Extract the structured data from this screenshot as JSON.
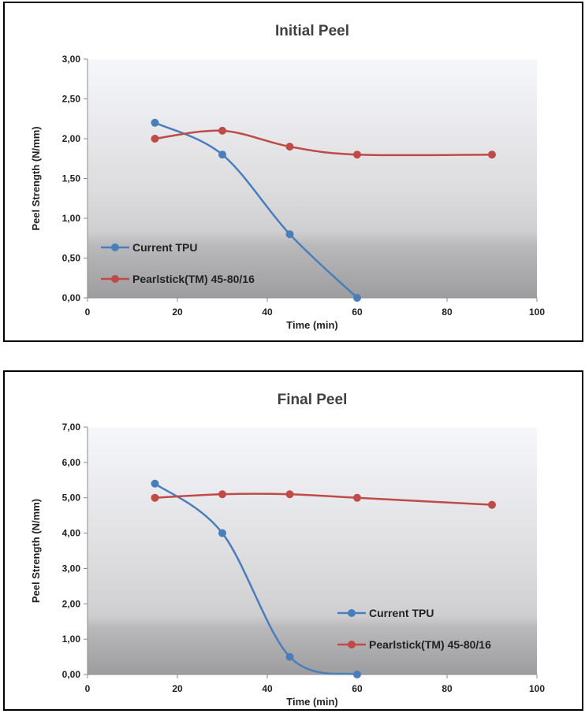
{
  "chart_data": [
    {
      "type": "line",
      "title": "Initial Peel",
      "xlabel": "Time (min)",
      "ylabel": "Peel Strength (N/mm)",
      "xlim": [
        0,
        100
      ],
      "ylim": [
        0,
        3
      ],
      "x_ticks": [
        "0",
        "20",
        "40",
        "60",
        "80",
        "100"
      ],
      "y_ticks": [
        "0,00",
        "0,50",
        "1,00",
        "1,50",
        "2,00",
        "2,50",
        "3,00"
      ],
      "legend_position": "bottom-left",
      "series": [
        {
          "name": "Current TPU",
          "color": "#4a7ebb",
          "x": [
            15,
            30,
            45,
            60
          ],
          "y": [
            2.2,
            1.8,
            0.8,
            0.0
          ]
        },
        {
          "name": "Pearlstick(TM) 45-80/16",
          "color": "#be4b48",
          "x": [
            15,
            30,
            45,
            60,
            90
          ],
          "y": [
            2.0,
            2.1,
            1.9,
            1.8,
            1.8
          ]
        }
      ]
    },
    {
      "type": "line",
      "title": "Final Peel",
      "xlabel": "Time (min)",
      "ylabel": "Peel Strength (N/mm)",
      "xlim": [
        0,
        100
      ],
      "ylim": [
        0,
        7
      ],
      "x_ticks": [
        "0",
        "20",
        "40",
        "60",
        "80",
        "100"
      ],
      "y_ticks": [
        "0,00",
        "1,00",
        "2,00",
        "3,00",
        "4,00",
        "5,00",
        "6,00",
        "7,00"
      ],
      "legend_position": "bottom-right",
      "series": [
        {
          "name": "Current TPU",
          "color": "#4a7ebb",
          "x": [
            15,
            30,
            45,
            60
          ],
          "y": [
            5.4,
            4.0,
            0.5,
            0.0
          ]
        },
        {
          "name": "Pearlstick(TM) 45-80/16",
          "color": "#be4b48",
          "x": [
            15,
            30,
            45,
            60,
            90
          ],
          "y": [
            5.0,
            5.1,
            5.1,
            5.0,
            4.8
          ]
        }
      ]
    }
  ]
}
